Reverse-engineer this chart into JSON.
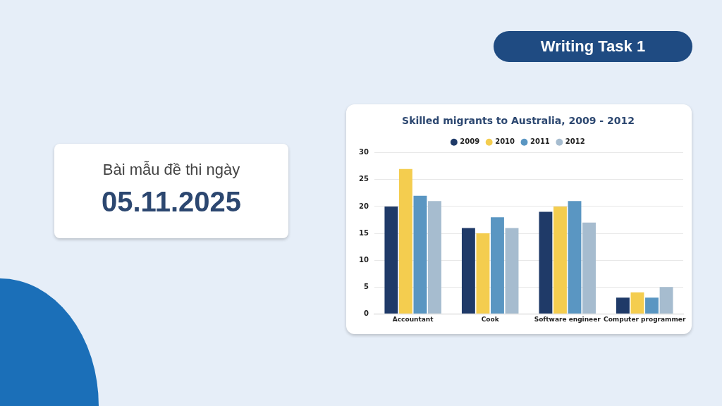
{
  "chart_data": {
    "type": "bar",
    "title": "Skilled migrants to Australia, 2009 - 2012",
    "annotations": [
      "Writing Task 1",
      "Bài mẫu đề thi ngày",
      "05.11.2025"
    ],
    "categories": [
      "Accountant",
      "Cook",
      "Software engineer",
      "Computer programmer"
    ],
    "series": [
      {
        "name": "2009",
        "color": "#1f3a68",
        "values": [
          20,
          16,
          19,
          3
        ]
      },
      {
        "name": "2010",
        "color": "#f4cd4f",
        "values": [
          27,
          15,
          20,
          4
        ]
      },
      {
        "name": "2011",
        "color": "#5a96c2",
        "values": [
          22,
          18,
          21,
          3
        ]
      },
      {
        "name": "2012",
        "color": "#a6bccf",
        "values": [
          21,
          16,
          17,
          5
        ]
      }
    ],
    "ylim": [
      0,
      30
    ],
    "yticks": [
      0,
      5,
      10,
      15,
      20,
      25,
      30
    ],
    "grid": "y",
    "legend": "top"
  }
}
